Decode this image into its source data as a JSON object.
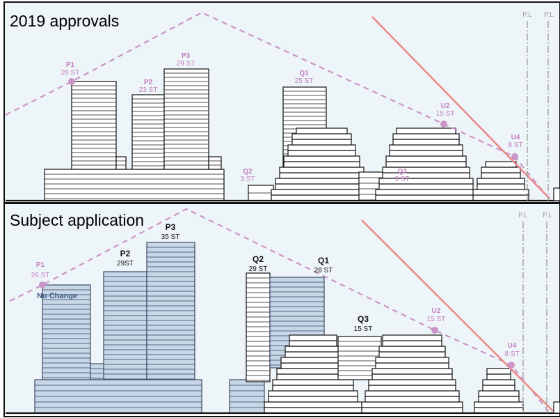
{
  "panels": [
    {
      "title": "2019 approvals",
      "pl_labels": [
        "P.L",
        "P.L"
      ],
      "buildings": [
        {
          "name": "P1",
          "label": "26 ST"
        },
        {
          "name": "P2",
          "label": "23 ST"
        },
        {
          "name": "P3",
          "label": "29 ST"
        },
        {
          "name": "Q1",
          "label": "25 ST"
        },
        {
          "name": "Q2",
          "label": "3 ST"
        },
        {
          "name": "Q3",
          "label": "3 ST"
        },
        {
          "name": "U2",
          "label": "15 ST"
        },
        {
          "name": "U4",
          "label": "8 ST"
        }
      ]
    },
    {
      "title": "Subject application",
      "pl_labels": [
        "P.L",
        "P.L"
      ],
      "buildings": [
        {
          "name": "P1",
          "label": "26 ST",
          "note": "No Change"
        },
        {
          "name": "P2",
          "label": "29ST"
        },
        {
          "name": "P3",
          "label": "35 ST"
        },
        {
          "name": "Q2",
          "label": "29 ST"
        },
        {
          "name": "Q1",
          "label": "28 ST"
        },
        {
          "name": "Q3",
          "label": "15 ST"
        },
        {
          "name": "U2",
          "label": "15 ST"
        },
        {
          "name": "U4",
          "label": "8 ST"
        }
      ]
    }
  ],
  "colors": {
    "proposed_fill": "#c7d7e8",
    "angular_plane": "#c996c6",
    "sight_line": "#ea8a8a",
    "property_line": "#999999"
  }
}
